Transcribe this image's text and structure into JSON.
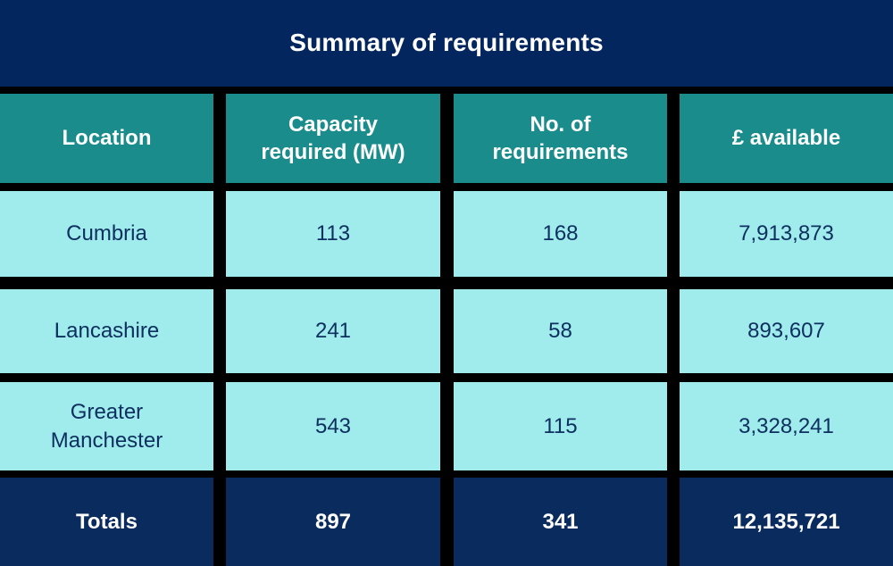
{
  "title": "Summary of requirements",
  "table": {
    "headers": [
      "Location",
      "Capacity\nrequired (MW)",
      "No. of\nrequirements",
      "£ available"
    ],
    "rows": [
      [
        "Cumbria",
        "113",
        "168",
        "7,913,873"
      ],
      [
        "Lancashire",
        "241",
        "58",
        "893,607"
      ],
      [
        "Greater\nManchester",
        "543",
        "115",
        "3,328,241"
      ]
    ],
    "totals": [
      "Totals",
      "897",
      "341",
      "12,135,721"
    ]
  },
  "colors": {
    "title_bar": "#04265e",
    "header": "#1a8c8c",
    "row": "#a0ebeb",
    "totals": "#0a2b5e",
    "grid_lines": "#000000",
    "data_text": "#0e3060",
    "header_text": "#ffffff"
  }
}
